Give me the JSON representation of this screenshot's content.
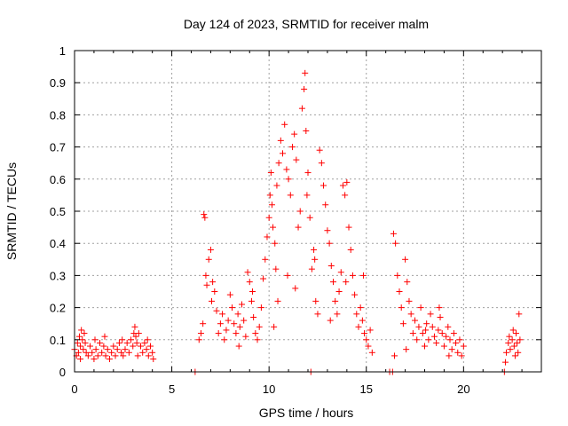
{
  "chart_data": {
    "type": "scatter",
    "title": "Day 124 of 2023, SRMTID for receiver malm",
    "xlabel": "GPS time / hours",
    "ylabel": "SRMTID / TECUs",
    "xlim": [
      0,
      24
    ],
    "ylim": [
      0,
      1
    ],
    "xticks": [
      0,
      5,
      10,
      15,
      20
    ],
    "yticks": [
      0,
      0.1,
      0.2,
      0.3,
      0.4,
      0.5,
      0.6,
      0.7,
      0.8,
      0.9,
      1
    ],
    "ytick_labels": [
      "0",
      "0.1",
      "0.2",
      "0.3",
      "0.4",
      "0.5",
      "0.6",
      "0.7",
      "0.8",
      "0.9",
      "1"
    ],
    "xtick_labels": [
      "0",
      "5",
      "10",
      "15",
      "20"
    ],
    "grid": true,
    "marker": "+",
    "color": "#ff0000",
    "series": [
      {
        "name": "SRMTID",
        "points": [
          [
            0.0,
            0.07
          ],
          [
            0.1,
            0.05
          ],
          [
            0.15,
            0.09
          ],
          [
            0.2,
            0.06
          ],
          [
            0.25,
            0.11
          ],
          [
            0.3,
            0.08
          ],
          [
            0.35,
            0.13
          ],
          [
            0.4,
            0.1
          ],
          [
            0.45,
            0.07
          ],
          [
            0.5,
            0.12
          ],
          [
            0.55,
            0.09
          ],
          [
            0.6,
            0.06
          ],
          [
            0.7,
            0.05
          ],
          [
            0.8,
            0.08
          ],
          [
            0.9,
            0.06
          ],
          [
            1.0,
            0.04
          ],
          [
            1.1,
            0.07
          ],
          [
            1.2,
            0.05
          ],
          [
            1.3,
            0.09
          ],
          [
            1.4,
            0.06
          ],
          [
            1.5,
            0.08
          ],
          [
            1.6,
            0.05
          ],
          [
            1.7,
            0.07
          ],
          [
            1.8,
            0.04
          ],
          [
            1.9,
            0.06
          ],
          [
            2.0,
            0.08
          ],
          [
            2.1,
            0.05
          ],
          [
            2.2,
            0.07
          ],
          [
            2.3,
            0.09
          ],
          [
            2.4,
            0.06
          ],
          [
            2.5,
            0.05
          ],
          [
            2.6,
            0.07
          ],
          [
            2.7,
            0.09
          ],
          [
            2.8,
            0.06
          ],
          [
            2.9,
            0.1
          ],
          [
            3.0,
            0.08
          ],
          [
            3.05,
            0.12
          ],
          [
            3.1,
            0.14
          ],
          [
            3.15,
            0.11
          ],
          [
            3.2,
            0.09
          ],
          [
            3.3,
            0.12
          ],
          [
            3.4,
            0.08
          ],
          [
            3.5,
            0.06
          ],
          [
            3.6,
            0.09
          ],
          [
            3.7,
            0.07
          ],
          [
            3.8,
            0.05
          ],
          [
            3.9,
            0.08
          ],
          [
            4.0,
            0.06
          ],
          [
            4.05,
            0.04
          ],
          [
            0.3,
            0.04
          ],
          [
            1.05,
            0.1
          ],
          [
            1.55,
            0.11
          ],
          [
            2.45,
            0.1
          ],
          [
            3.25,
            0.05
          ],
          [
            3.75,
            0.1
          ],
          [
            6.2,
            0.0
          ],
          [
            6.4,
            0.1
          ],
          [
            6.5,
            0.12
          ],
          [
            6.6,
            0.15
          ],
          [
            6.65,
            0.49
          ],
          [
            6.7,
            0.48
          ],
          [
            6.75,
            0.3
          ],
          [
            6.8,
            0.27
          ],
          [
            6.9,
            0.35
          ],
          [
            7.0,
            0.38
          ],
          [
            7.05,
            0.22
          ],
          [
            7.1,
            0.28
          ],
          [
            7.2,
            0.25
          ],
          [
            7.3,
            0.19
          ],
          [
            7.4,
            0.12
          ],
          [
            7.5,
            0.15
          ],
          [
            7.6,
            0.18
          ],
          [
            7.7,
            0.1
          ],
          [
            7.8,
            0.13
          ],
          [
            7.9,
            0.16
          ],
          [
            8.0,
            0.24
          ],
          [
            8.1,
            0.2
          ],
          [
            8.2,
            0.15
          ],
          [
            8.3,
            0.12
          ],
          [
            8.4,
            0.18
          ],
          [
            8.5,
            0.14
          ],
          [
            8.6,
            0.21
          ],
          [
            8.7,
            0.16
          ],
          [
            8.8,
            0.11
          ],
          [
            8.9,
            0.31
          ],
          [
            9.0,
            0.28
          ],
          [
            9.1,
            0.22
          ],
          [
            9.2,
            0.17
          ],
          [
            9.3,
            0.12
          ],
          [
            9.4,
            0.1
          ],
          [
            9.5,
            0.14
          ],
          [
            9.6,
            0.2
          ],
          [
            9.7,
            0.29
          ],
          [
            9.8,
            0.35
          ],
          [
            9.9,
            0.42
          ],
          [
            10.0,
            0.48
          ],
          [
            10.05,
            0.55
          ],
          [
            10.1,
            0.62
          ],
          [
            10.15,
            0.52
          ],
          [
            10.2,
            0.45
          ],
          [
            10.3,
            0.4
          ],
          [
            10.35,
            0.32
          ],
          [
            10.4,
            0.58
          ],
          [
            10.5,
            0.65
          ],
          [
            10.6,
            0.72
          ],
          [
            10.7,
            0.68
          ],
          [
            10.8,
            0.77
          ],
          [
            10.9,
            0.63
          ],
          [
            11.0,
            0.6
          ],
          [
            11.1,
            0.55
          ],
          [
            11.2,
            0.7
          ],
          [
            11.3,
            0.74
          ],
          [
            11.4,
            0.66
          ],
          [
            11.5,
            0.45
          ],
          [
            11.6,
            0.5
          ],
          [
            11.7,
            0.82
          ],
          [
            11.8,
            0.88
          ],
          [
            11.85,
            0.93
          ],
          [
            11.9,
            0.75
          ],
          [
            12.0,
            0.62
          ],
          [
            12.1,
            0.48
          ],
          [
            12.2,
            0.32
          ],
          [
            12.3,
            0.38
          ],
          [
            12.4,
            0.22
          ],
          [
            12.5,
            0.18
          ],
          [
            12.6,
            0.69
          ],
          [
            12.7,
            0.65
          ],
          [
            12.8,
            0.58
          ],
          [
            12.9,
            0.52
          ],
          [
            13.0,
            0.44
          ],
          [
            13.1,
            0.4
          ],
          [
            13.2,
            0.33
          ],
          [
            13.3,
            0.28
          ],
          [
            13.4,
            0.22
          ],
          [
            13.5,
            0.18
          ],
          [
            13.6,
            0.25
          ],
          [
            13.7,
            0.31
          ],
          [
            13.8,
            0.58
          ],
          [
            13.9,
            0.55
          ],
          [
            14.0,
            0.59
          ],
          [
            14.1,
            0.45
          ],
          [
            14.2,
            0.38
          ],
          [
            14.3,
            0.3
          ],
          [
            14.4,
            0.24
          ],
          [
            14.5,
            0.18
          ],
          [
            14.6,
            0.14
          ],
          [
            14.7,
            0.2
          ],
          [
            14.8,
            0.16
          ],
          [
            14.9,
            0.12
          ],
          [
            15.0,
            0.1
          ],
          [
            15.1,
            0.08
          ],
          [
            15.2,
            0.13
          ],
          [
            15.3,
            0.06
          ],
          [
            12.15,
            0.0
          ],
          [
            11.95,
            0.55
          ],
          [
            10.25,
            0.14
          ],
          [
            10.45,
            0.22
          ],
          [
            10.95,
            0.3
          ],
          [
            11.35,
            0.26
          ],
          [
            12.35,
            0.35
          ],
          [
            13.15,
            0.16
          ],
          [
            13.95,
            0.28
          ],
          [
            14.85,
            0.3
          ],
          [
            9.15,
            0.25
          ],
          [
            8.45,
            0.08
          ],
          [
            16.2,
            0.0
          ],
          [
            16.35,
            0.0
          ],
          [
            16.4,
            0.43
          ],
          [
            16.5,
            0.4
          ],
          [
            16.6,
            0.3
          ],
          [
            16.7,
            0.25
          ],
          [
            16.8,
            0.2
          ],
          [
            16.9,
            0.15
          ],
          [
            17.0,
            0.35
          ],
          [
            17.1,
            0.28
          ],
          [
            17.2,
            0.22
          ],
          [
            17.3,
            0.18
          ],
          [
            17.4,
            0.12
          ],
          [
            17.5,
            0.16
          ],
          [
            17.6,
            0.1
          ],
          [
            17.7,
            0.14
          ],
          [
            17.8,
            0.2
          ],
          [
            17.9,
            0.12
          ],
          [
            18.0,
            0.08
          ],
          [
            18.1,
            0.15
          ],
          [
            18.2,
            0.1
          ],
          [
            18.3,
            0.18
          ],
          [
            18.4,
            0.14
          ],
          [
            18.5,
            0.11
          ],
          [
            18.6,
            0.09
          ],
          [
            18.7,
            0.13
          ],
          [
            18.8,
            0.17
          ],
          [
            18.9,
            0.12
          ],
          [
            19.0,
            0.08
          ],
          [
            19.1,
            0.11
          ],
          [
            19.2,
            0.14
          ],
          [
            19.3,
            0.1
          ],
          [
            19.4,
            0.07
          ],
          [
            19.5,
            0.12
          ],
          [
            19.6,
            0.09
          ],
          [
            19.7,
            0.06
          ],
          [
            19.8,
            0.1
          ],
          [
            19.9,
            0.05
          ],
          [
            20.0,
            0.08
          ],
          [
            16.45,
            0.05
          ],
          [
            17.05,
            0.07
          ],
          [
            18.05,
            0.13
          ],
          [
            18.75,
            0.2
          ],
          [
            19.25,
            0.05
          ],
          [
            22.1,
            0.0
          ],
          [
            22.15,
            0.03
          ],
          [
            22.2,
            0.06
          ],
          [
            22.3,
            0.09
          ],
          [
            22.35,
            0.11
          ],
          [
            22.4,
            0.07
          ],
          [
            22.5,
            0.1
          ],
          [
            22.55,
            0.13
          ],
          [
            22.6,
            0.08
          ],
          [
            22.65,
            0.05
          ],
          [
            22.7,
            0.12
          ],
          [
            22.75,
            0.09
          ],
          [
            22.8,
            0.06
          ],
          [
            22.85,
            0.18
          ],
          [
            22.9,
            0.1
          ]
        ]
      }
    ]
  }
}
